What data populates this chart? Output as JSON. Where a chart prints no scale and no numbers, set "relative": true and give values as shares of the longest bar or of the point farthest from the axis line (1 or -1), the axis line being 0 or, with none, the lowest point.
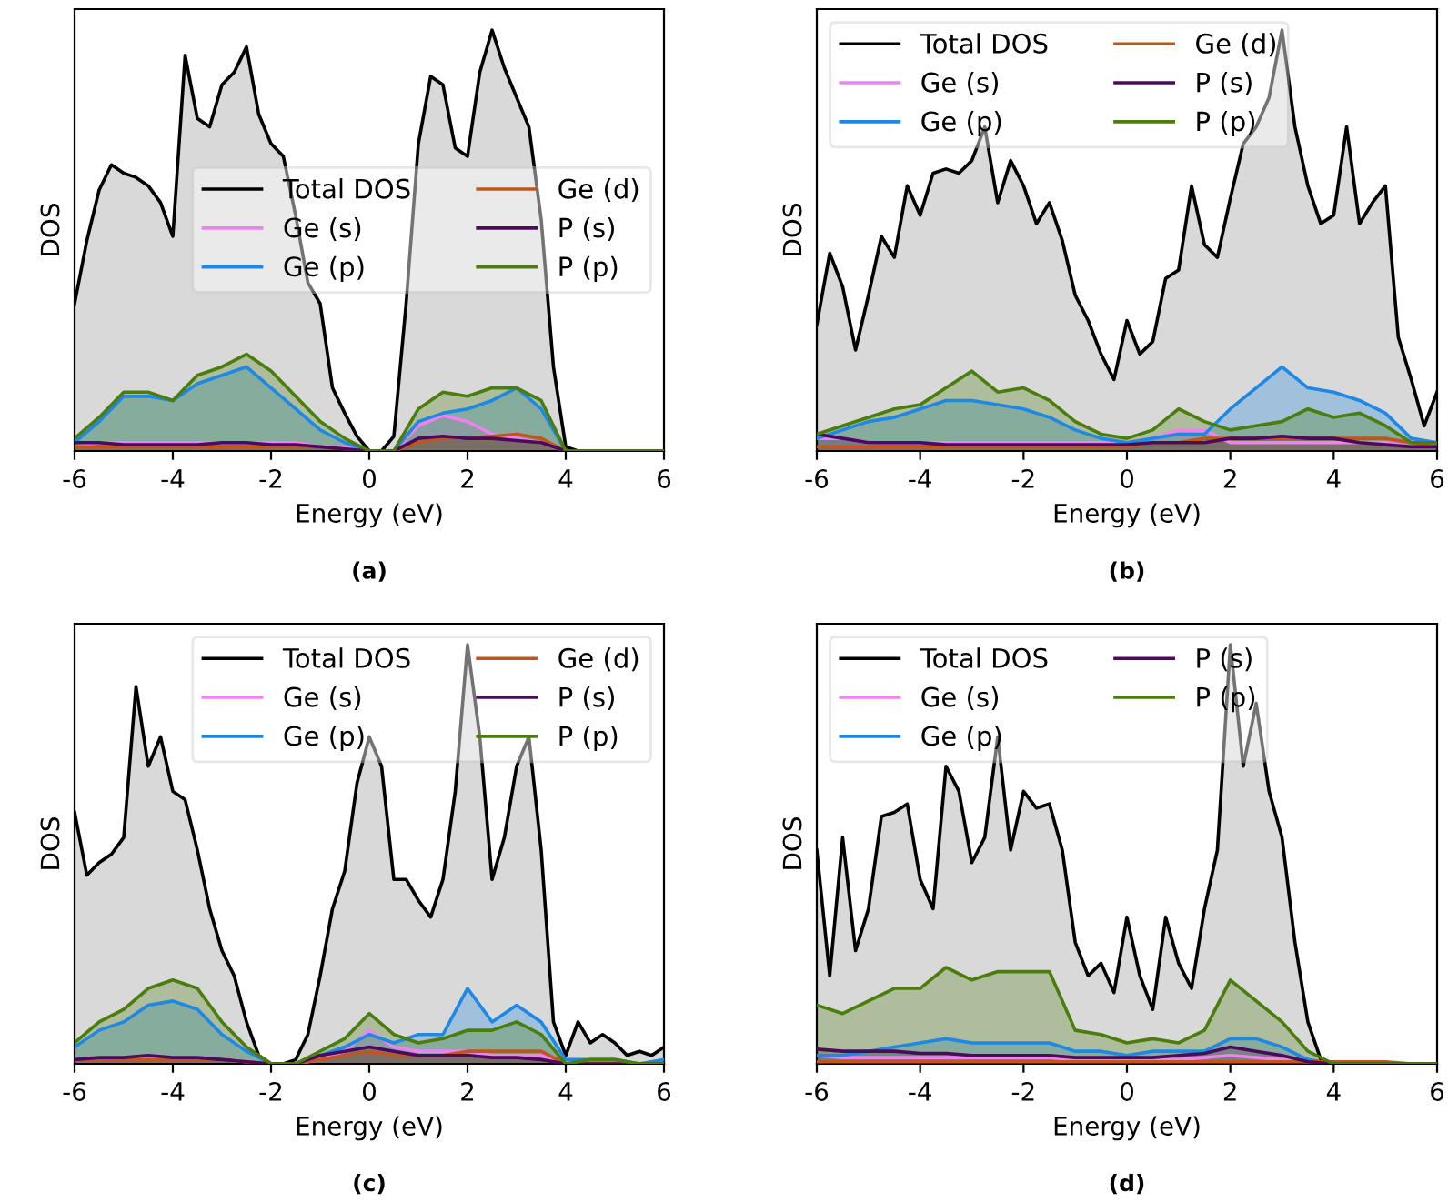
{
  "chart_data": [
    {
      "type": "area",
      "relative": true,
      "xlabel": "Energy (eV)",
      "ylabel": "DOS",
      "annotations": [
        "(a)"
      ],
      "xlim": [
        -6,
        6
      ],
      "xticks": [
        -6,
        -4,
        -2,
        0,
        2,
        4,
        6
      ],
      "tick_labels": "x",
      "legend": "right",
      "grid": false,
      "series": [
        {
          "name": "Total DOS",
          "color": "#000000",
          "x": [
            -6,
            -5.75,
            -5.5,
            -5.25,
            -5,
            -4.75,
            -4.5,
            -4.25,
            -4,
            -3.75,
            -3.5,
            -3.25,
            -3,
            -2.75,
            -2.5,
            -2.25,
            -2,
            -1.75,
            -1.5,
            -1.25,
            -1,
            -0.75,
            -0.5,
            -0.25,
            0,
            0.25,
            0.5,
            0.75,
            1,
            1.25,
            1.5,
            1.75,
            2,
            2.25,
            2.5,
            2.75,
            3,
            3.25,
            3.5,
            3.75,
            4,
            4.25,
            4.5,
            4.75,
            5,
            5.25,
            5.5,
            5.75,
            6
          ],
          "values": [
            0.35,
            0.5,
            0.62,
            0.68,
            0.66,
            0.65,
            0.63,
            0.59,
            0.51,
            0.94,
            0.79,
            0.77,
            0.87,
            0.9,
            0.96,
            0.8,
            0.73,
            0.7,
            0.56,
            0.4,
            0.35,
            0.15,
            0.09,
            0.035,
            0,
            0,
            0.035,
            0.35,
            0.73,
            0.89,
            0.87,
            0.72,
            0.7,
            0.9,
            1.0,
            0.91,
            0.84,
            0.77,
            0.55,
            0.2,
            0.01,
            0,
            0,
            0,
            0,
            0,
            0,
            0,
            0
          ]
        },
        {
          "name": "Ge (s)",
          "color": "#ee82ee",
          "x": [
            -6,
            -5.5,
            -5,
            -4.5,
            -4,
            -3.5,
            -3,
            -2.5,
            -2,
            -1.5,
            -1,
            -0.5,
            0,
            0.5,
            1,
            1.5,
            2,
            2.5,
            3,
            3.5,
            4,
            4.5,
            5,
            5.5,
            6
          ],
          "values": [
            0.01,
            0.02,
            0.02,
            0.02,
            0.02,
            0.02,
            0.02,
            0.02,
            0.02,
            0.02,
            0.01,
            0.01,
            0,
            0,
            0.06,
            0.085,
            0.07,
            0.04,
            0.03,
            0.02,
            0,
            0,
            0,
            0,
            0
          ]
        },
        {
          "name": "Ge (p)",
          "color": "#1e88e5",
          "x": [
            -6,
            -5.5,
            -5,
            -4.5,
            -4,
            -3.5,
            -3,
            -2.5,
            -2,
            -1.5,
            -1,
            -0.5,
            0,
            0.5,
            1,
            1.5,
            2,
            2.5,
            3,
            3.5,
            4,
            4.5,
            5,
            5.5,
            6
          ],
          "values": [
            0.02,
            0.07,
            0.13,
            0.13,
            0.12,
            0.16,
            0.18,
            0.2,
            0.15,
            0.1,
            0.05,
            0.02,
            0,
            0,
            0.07,
            0.09,
            0.1,
            0.12,
            0.15,
            0.1,
            0,
            0,
            0,
            0,
            0
          ]
        },
        {
          "name": "Ge (d)",
          "color": "#c0561a",
          "x": [
            -6,
            -5.5,
            -5,
            -4.5,
            -4,
            -3.5,
            -3,
            -2.5,
            -2,
            -1.5,
            -1,
            -0.5,
            0,
            0.5,
            1,
            1.5,
            2,
            2.5,
            3,
            3.5,
            4,
            4.5,
            5,
            5.5,
            6
          ],
          "values": [
            0.01,
            0.01,
            0.01,
            0.01,
            0.01,
            0.01,
            0.01,
            0.01,
            0.01,
            0.01,
            0.01,
            0.005,
            0,
            0,
            0.02,
            0.03,
            0.03,
            0.035,
            0.04,
            0.03,
            0,
            0,
            0,
            0,
            0
          ]
        },
        {
          "name": "P (s)",
          "color": "#4b0a5c",
          "x": [
            -6,
            -5.5,
            -5,
            -4.5,
            -4,
            -3.5,
            -3,
            -2.5,
            -2,
            -1.5,
            -1,
            -0.5,
            0,
            0.5,
            1,
            1.5,
            2,
            2.5,
            3,
            3.5,
            4,
            4.5,
            5,
            5.5,
            6
          ],
          "values": [
            0.02,
            0.02,
            0.015,
            0.015,
            0.015,
            0.015,
            0.02,
            0.02,
            0.015,
            0.015,
            0.01,
            0.005,
            0,
            0,
            0.03,
            0.035,
            0.03,
            0.03,
            0.025,
            0.02,
            0,
            0,
            0,
            0,
            0
          ]
        },
        {
          "name": "P (p)",
          "color": "#4b7d0c",
          "x": [
            -6,
            -5.5,
            -5,
            -4.5,
            -4,
            -3.5,
            -3,
            -2.5,
            -2,
            -1.5,
            -1,
            -0.5,
            0,
            0.5,
            1,
            1.5,
            2,
            2.5,
            3,
            3.5,
            4,
            4.5,
            5,
            5.5,
            6
          ],
          "values": [
            0.03,
            0.08,
            0.14,
            0.14,
            0.12,
            0.18,
            0.2,
            0.23,
            0.19,
            0.13,
            0.07,
            0.03,
            0,
            0,
            0.1,
            0.14,
            0.13,
            0.15,
            0.15,
            0.12,
            0,
            0,
            0,
            0,
            0
          ]
        }
      ]
    },
    {
      "type": "area",
      "relative": true,
      "xlabel": "Energy (eV)",
      "ylabel": "DOS",
      "annotations": [
        "(b)"
      ],
      "xlim": [
        -6,
        6
      ],
      "xticks": [
        -6,
        -4,
        -2,
        0,
        2,
        4,
        6
      ],
      "tick_labels": "x",
      "legend": "top left",
      "grid": false,
      "series": [
        {
          "name": "Total DOS",
          "color": "#000000",
          "x": [
            -6,
            -5.75,
            -5.5,
            -5.25,
            -5,
            -4.75,
            -4.5,
            -4.25,
            -4,
            -3.75,
            -3.5,
            -3.25,
            -3,
            -2.75,
            -2.5,
            -2.25,
            -2,
            -1.75,
            -1.5,
            -1.25,
            -1,
            -0.75,
            -0.5,
            -0.25,
            0,
            0.25,
            0.5,
            0.75,
            1,
            1.25,
            1.5,
            1.75,
            2,
            2.25,
            2.5,
            2.75,
            3,
            3.25,
            3.5,
            3.75,
            4,
            4.25,
            4.5,
            4.75,
            5,
            5.25,
            5.5,
            5.75,
            6
          ],
          "values": [
            0.3,
            0.47,
            0.39,
            0.24,
            0.37,
            0.51,
            0.46,
            0.63,
            0.56,
            0.66,
            0.67,
            0.66,
            0.69,
            0.77,
            0.59,
            0.69,
            0.63,
            0.54,
            0.59,
            0.5,
            0.37,
            0.31,
            0.23,
            0.17,
            0.31,
            0.23,
            0.26,
            0.41,
            0.43,
            0.63,
            0.49,
            0.46,
            0.6,
            0.73,
            0.77,
            0.84,
            1.0,
            0.77,
            0.63,
            0.54,
            0.56,
            0.77,
            0.54,
            0.59,
            0.63,
            0.27,
            0.17,
            0.06,
            0.14
          ]
        },
        {
          "name": "Ge (s)",
          "color": "#ee82ee",
          "x": [
            -6,
            -5.5,
            -5,
            -4.5,
            -4,
            -3.5,
            -3,
            -2.5,
            -2,
            -1.5,
            -1,
            -0.5,
            0,
            0.5,
            1,
            1.5,
            2,
            2.5,
            3,
            3.5,
            4,
            4.5,
            5,
            5.5,
            6
          ],
          "values": [
            0.03,
            0.03,
            0.02,
            0.02,
            0.02,
            0.02,
            0.02,
            0.02,
            0.02,
            0.02,
            0.02,
            0.02,
            0.02,
            0.03,
            0.05,
            0.05,
            0.02,
            0.02,
            0.02,
            0.02,
            0.02,
            0.02,
            0.02,
            0.01,
            0.01
          ]
        },
        {
          "name": "Ge (p)",
          "color": "#1e88e5",
          "x": [
            -6,
            -5.5,
            -5,
            -4.5,
            -4,
            -3.5,
            -3,
            -2.5,
            -2,
            -1.5,
            -1,
            -0.5,
            0,
            0.5,
            1,
            1.5,
            2,
            2.5,
            3,
            3.5,
            4,
            4.5,
            5,
            5.5,
            6
          ],
          "values": [
            0.03,
            0.05,
            0.07,
            0.08,
            0.1,
            0.12,
            0.12,
            0.11,
            0.1,
            0.08,
            0.05,
            0.03,
            0.02,
            0.03,
            0.04,
            0.04,
            0.1,
            0.15,
            0.2,
            0.15,
            0.14,
            0.12,
            0.09,
            0.03,
            0.02
          ]
        },
        {
          "name": "Ge (d)",
          "color": "#c0561a",
          "x": [
            -6,
            -5.5,
            -5,
            -4.5,
            -4,
            -3.5,
            -3,
            -2.5,
            -2,
            -1.5,
            -1,
            -0.5,
            0,
            0.5,
            1,
            1.5,
            2,
            2.5,
            3,
            3.5,
            4,
            4.5,
            5,
            5.5,
            6
          ],
          "values": [
            0.01,
            0.01,
            0.01,
            0.01,
            0.01,
            0.01,
            0.01,
            0.01,
            0.01,
            0.01,
            0.01,
            0.01,
            0.01,
            0.02,
            0.02,
            0.03,
            0.03,
            0.03,
            0.03,
            0.03,
            0.03,
            0.03,
            0.03,
            0.02,
            0.01
          ]
        },
        {
          "name": "P (s)",
          "color": "#4b0a5c",
          "x": [
            -6,
            -5.5,
            -5,
            -4.5,
            -4,
            -3.5,
            -3,
            -2.5,
            -2,
            -1.5,
            -1,
            -0.5,
            0,
            0.5,
            1,
            1.5,
            2,
            2.5,
            3,
            3.5,
            4,
            4.5,
            5,
            5.5,
            6
          ],
          "values": [
            0.04,
            0.03,
            0.02,
            0.02,
            0.02,
            0.015,
            0.015,
            0.015,
            0.015,
            0.015,
            0.015,
            0.015,
            0.015,
            0.02,
            0.02,
            0.02,
            0.03,
            0.03,
            0.035,
            0.03,
            0.03,
            0.02,
            0.015,
            0.01,
            0.01
          ]
        },
        {
          "name": "P (p)",
          "color": "#4b7d0c",
          "x": [
            -6,
            -5.5,
            -5,
            -4.5,
            -4,
            -3.5,
            -3,
            -2.5,
            -2,
            -1.5,
            -1,
            -0.5,
            0,
            0.5,
            1,
            1.5,
            2,
            2.5,
            3,
            3.5,
            4,
            4.5,
            5,
            5.5,
            6
          ],
          "values": [
            0.04,
            0.06,
            0.08,
            0.1,
            0.11,
            0.15,
            0.19,
            0.14,
            0.15,
            0.12,
            0.07,
            0.04,
            0.03,
            0.05,
            0.1,
            0.07,
            0.05,
            0.06,
            0.07,
            0.1,
            0.08,
            0.09,
            0.06,
            0.02,
            0.02
          ]
        }
      ]
    },
    {
      "type": "area",
      "relative": true,
      "xlabel": "Energy (eV)",
      "ylabel": "DOS",
      "annotations": [
        "(c)"
      ],
      "xlim": [
        -6,
        6
      ],
      "xticks": [
        -6,
        -4,
        -2,
        0,
        2,
        4,
        6
      ],
      "tick_labels": "x",
      "legend": "top right",
      "grid": false,
      "series": [
        {
          "name": "Total DOS",
          "color": "#000000",
          "x": [
            -6,
            -5.75,
            -5.5,
            -5.25,
            -5,
            -4.75,
            -4.5,
            -4.25,
            -4,
            -3.75,
            -3.5,
            -3.25,
            -3,
            -2.75,
            -2.5,
            -2.25,
            -2,
            -1.75,
            -1.5,
            -1.25,
            -1,
            -0.75,
            -0.5,
            -0.25,
            0,
            0.25,
            0.5,
            0.75,
            1,
            1.25,
            1.5,
            1.75,
            2,
            2.25,
            2.5,
            2.75,
            3,
            3.25,
            3.5,
            3.75,
            4,
            4.25,
            4.5,
            4.75,
            5,
            5.25,
            5.5,
            5.75,
            6
          ],
          "values": [
            0.6,
            0.45,
            0.48,
            0.5,
            0.54,
            0.9,
            0.71,
            0.78,
            0.65,
            0.63,
            0.51,
            0.37,
            0.27,
            0.21,
            0.1,
            0.02,
            0,
            0,
            0.01,
            0.07,
            0.21,
            0.37,
            0.46,
            0.67,
            0.78,
            0.71,
            0.44,
            0.44,
            0.39,
            0.35,
            0.44,
            0.65,
            1.0,
            0.78,
            0.44,
            0.54,
            0.71,
            0.78,
            0.51,
            0.1,
            0.02,
            0.1,
            0.05,
            0.07,
            0.05,
            0.02,
            0.03,
            0.02,
            0.04
          ]
        },
        {
          "name": "Ge (s)",
          "color": "#ee82ee",
          "x": [
            -6,
            -5.5,
            -5,
            -4.5,
            -4,
            -3.5,
            -3,
            -2.5,
            -2,
            -1.5,
            -1,
            -0.5,
            0,
            0.5,
            1,
            1.5,
            2,
            2.5,
            3,
            3.5,
            4,
            4.5,
            5,
            5.5,
            6
          ],
          "values": [
            0.01,
            0.015,
            0.015,
            0.015,
            0.015,
            0.015,
            0.01,
            0.005,
            0,
            0,
            0.01,
            0.03,
            0.08,
            0.04,
            0.03,
            0.03,
            0.03,
            0.02,
            0.02,
            0.02,
            0,
            0,
            0,
            0,
            0
          ]
        },
        {
          "name": "Ge (p)",
          "color": "#1e88e5",
          "x": [
            -6,
            -5.5,
            -5,
            -4.5,
            -4,
            -3.5,
            -3,
            -2.5,
            -2,
            -1.5,
            -1,
            -0.5,
            0,
            0.5,
            1,
            1.5,
            2,
            2.5,
            3,
            3.5,
            4,
            4.5,
            5,
            5.5,
            6
          ],
          "values": [
            0.04,
            0.08,
            0.1,
            0.14,
            0.15,
            0.13,
            0.07,
            0.03,
            0,
            0,
            0.02,
            0.04,
            0.07,
            0.05,
            0.07,
            0.07,
            0.18,
            0.1,
            0.14,
            0.1,
            0.01,
            0.01,
            0.01,
            0,
            0.01
          ]
        },
        {
          "name": "Ge (d)",
          "color": "#c0561a",
          "x": [
            -6,
            -5.5,
            -5,
            -4.5,
            -4,
            -3.5,
            -3,
            -2.5,
            -2,
            -1.5,
            -1,
            -0.5,
            0,
            0.5,
            1,
            1.5,
            2,
            2.5,
            3,
            3.5,
            4,
            4.5,
            5,
            5.5,
            6
          ],
          "values": [
            0.01,
            0.01,
            0.01,
            0.01,
            0.01,
            0.01,
            0.01,
            0.005,
            0,
            0,
            0.01,
            0.02,
            0.03,
            0.02,
            0.02,
            0.02,
            0.03,
            0.03,
            0.03,
            0.03,
            0,
            0,
            0,
            0,
            0
          ]
        },
        {
          "name": "P (s)",
          "color": "#4b0a5c",
          "x": [
            -6,
            -5.5,
            -5,
            -4.5,
            -4,
            -3.5,
            -3,
            -2.5,
            -2,
            -1.5,
            -1,
            -0.5,
            0,
            0.5,
            1,
            1.5,
            2,
            2.5,
            3,
            3.5,
            4,
            4.5,
            5,
            5.5,
            6
          ],
          "values": [
            0.01,
            0.015,
            0.015,
            0.02,
            0.015,
            0.015,
            0.01,
            0.005,
            0,
            0,
            0.02,
            0.03,
            0.04,
            0.03,
            0.02,
            0.02,
            0.02,
            0.015,
            0.015,
            0.01,
            0,
            0,
            0,
            0,
            0
          ]
        },
        {
          "name": "P (p)",
          "color": "#4b7d0c",
          "x": [
            -6,
            -5.5,
            -5,
            -4.5,
            -4,
            -3.5,
            -3,
            -2.5,
            -2,
            -1.5,
            -1,
            -0.5,
            0,
            0.5,
            1,
            1.5,
            2,
            2.5,
            3,
            3.5,
            4,
            4.5,
            5,
            5.5,
            6
          ],
          "values": [
            0.05,
            0.1,
            0.13,
            0.18,
            0.2,
            0.18,
            0.1,
            0.04,
            0,
            0,
            0.03,
            0.06,
            0.12,
            0.07,
            0.05,
            0.06,
            0.08,
            0.08,
            0.1,
            0.07,
            0,
            0.01,
            0.01,
            0,
            0
          ]
        }
      ]
    },
    {
      "type": "area",
      "relative": true,
      "xlabel": "Energy (eV)",
      "ylabel": "DOS",
      "annotations": [
        "(d)"
      ],
      "xlim": [
        -6,
        6
      ],
      "xticks": [
        -6,
        -4,
        -2,
        0,
        2,
        4,
        6
      ],
      "tick_labels": "x",
      "legend": "top left",
      "grid": false,
      "series": [
        {
          "name": "Total DOS",
          "color": "#000000",
          "x": [
            -6,
            -5.75,
            -5.5,
            -5.25,
            -5,
            -4.75,
            -4.5,
            -4.25,
            -4,
            -3.75,
            -3.5,
            -3.25,
            -3,
            -2.75,
            -2.5,
            -2.25,
            -2,
            -1.75,
            -1.5,
            -1.25,
            -1,
            -0.75,
            -0.5,
            -0.25,
            0,
            0.25,
            0.5,
            0.75,
            1,
            1.25,
            1.5,
            1.75,
            2,
            2.25,
            2.5,
            2.75,
            3,
            3.25,
            3.5,
            3.75,
            4,
            4.25,
            4.5,
            4.75,
            5,
            5.25,
            5.5,
            5.75,
            6
          ],
          "values": [
            0.51,
            0.21,
            0.54,
            0.27,
            0.37,
            0.59,
            0.6,
            0.62,
            0.44,
            0.37,
            0.71,
            0.65,
            0.48,
            0.54,
            0.78,
            0.51,
            0.65,
            0.61,
            0.62,
            0.51,
            0.29,
            0.21,
            0.24,
            0.17,
            0.35,
            0.21,
            0.13,
            0.35,
            0.24,
            0.18,
            0.37,
            0.51,
            1.0,
            0.71,
            0.86,
            0.65,
            0.54,
            0.29,
            0.1,
            0.01,
            0,
            0,
            0,
            0,
            0,
            0,
            0,
            0,
            0
          ]
        },
        {
          "name": "Ge (s)",
          "color": "#ee82ee",
          "x": [
            -6,
            -5.5,
            -5,
            -4.5,
            -4,
            -3.5,
            -3,
            -2.5,
            -2,
            -1.5,
            -1,
            -0.5,
            0,
            0.5,
            1,
            1.5,
            2,
            2.5,
            3,
            3.5,
            4,
            4.5,
            5,
            5.5,
            6
          ],
          "values": [
            0.02,
            0.015,
            0.015,
            0.015,
            0.015,
            0.015,
            0.015,
            0.015,
            0.015,
            0.015,
            0.01,
            0.01,
            0.01,
            0.01,
            0.01,
            0.015,
            0.02,
            0.015,
            0.01,
            0.005,
            0,
            0,
            0,
            0,
            0
          ]
        },
        {
          "name": "Ge (p)",
          "color": "#1e88e5",
          "x": [
            -6,
            -5.5,
            -5,
            -4.5,
            -4,
            -3.5,
            -3,
            -2.5,
            -2,
            -1.5,
            -1,
            -0.5,
            0,
            0.5,
            1,
            1.5,
            2,
            2.5,
            3,
            3.5,
            4,
            4.5,
            5,
            5.5,
            6
          ],
          "values": [
            0.02,
            0.02,
            0.03,
            0.04,
            0.05,
            0.06,
            0.05,
            0.05,
            0.05,
            0.05,
            0.03,
            0.03,
            0.02,
            0.03,
            0.03,
            0.03,
            0.06,
            0.06,
            0.04,
            0.01,
            0,
            0,
            0,
            0,
            0
          ]
        },
        {
          "color": "#c0561a",
          "x": [
            -6,
            -5.5,
            -5,
            -4.5,
            -4,
            -3.5,
            -3,
            -2.5,
            -2,
            -1.5,
            -1,
            -0.5,
            0,
            0.5,
            1,
            1.5,
            2,
            2.5,
            3,
            3.5,
            4,
            4.5,
            5,
            5.5,
            6
          ],
          "values": [
            0.005,
            0.005,
            0.005,
            0.005,
            0.005,
            0.005,
            0.005,
            0.005,
            0.005,
            0.005,
            0.005,
            0.005,
            0.005,
            0.005,
            0.005,
            0.005,
            0.005,
            0.005,
            0.005,
            0.005,
            0.005,
            0.005,
            0.005,
            0,
            0
          ]
        },
        {
          "name": "P (s)",
          "color": "#4b0a5c",
          "x": [
            -6,
            -5.5,
            -5,
            -4.5,
            -4,
            -3.5,
            -3,
            -2.5,
            -2,
            -1.5,
            -1,
            -0.5,
            0,
            0.5,
            1,
            1.5,
            2,
            2.5,
            3,
            3.5,
            4,
            4.5,
            5,
            5.5,
            6
          ],
          "values": [
            0.035,
            0.03,
            0.03,
            0.03,
            0.025,
            0.025,
            0.02,
            0.02,
            0.02,
            0.02,
            0.015,
            0.015,
            0.015,
            0.015,
            0.02,
            0.025,
            0.04,
            0.03,
            0.02,
            0.005,
            0,
            0,
            0,
            0,
            0
          ]
        },
        {
          "name": "P (p)",
          "color": "#4b7d0c",
          "x": [
            -6,
            -5.5,
            -5,
            -4.5,
            -4,
            -3.5,
            -3,
            -2.5,
            -2,
            -1.5,
            -1,
            -0.5,
            0,
            0.5,
            1,
            1.5,
            2,
            2.5,
            3,
            3.5,
            4,
            4.5,
            5,
            5.5,
            6
          ],
          "values": [
            0.14,
            0.12,
            0.15,
            0.18,
            0.18,
            0.23,
            0.2,
            0.22,
            0.22,
            0.22,
            0.08,
            0.07,
            0.05,
            0.06,
            0.05,
            0.08,
            0.2,
            0.15,
            0.1,
            0.03,
            0,
            0,
            0,
            0,
            0
          ]
        }
      ]
    }
  ]
}
